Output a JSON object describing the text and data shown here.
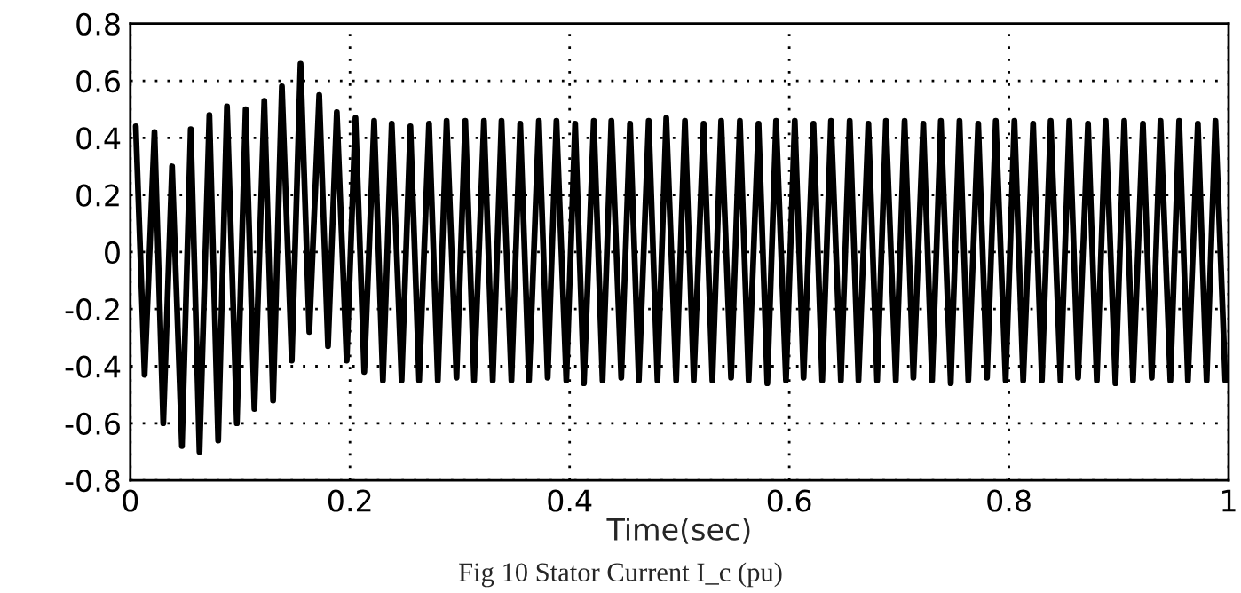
{
  "chart_data": {
    "type": "line",
    "xlabel": "Time(sec)",
    "annotations": [
      "Fig 10 Stator Current I_c (pu)"
    ],
    "x": [
      0.005,
      0.013,
      0.022,
      0.03,
      0.038,
      0.047,
      0.055,
      0.063,
      0.072,
      0.08,
      0.088,
      0.097,
      0.105,
      0.113,
      0.122,
      0.13,
      0.138,
      0.147,
      0.155,
      0.163,
      0.172,
      0.18,
      0.188,
      0.197,
      0.205,
      0.213,
      0.222,
      0.23,
      0.238,
      0.247,
      0.255,
      0.263,
      0.272,
      0.28,
      0.288,
      0.297,
      0.305,
      0.313,
      0.322,
      0.33,
      0.338,
      0.347,
      0.355,
      0.363,
      0.372,
      0.38,
      0.388,
      0.397,
      0.405,
      0.413,
      0.422,
      0.43,
      0.438,
      0.447,
      0.455,
      0.463,
      0.472,
      0.48,
      0.488,
      0.497,
      0.505,
      0.513,
      0.522,
      0.53,
      0.538,
      0.547,
      0.555,
      0.563,
      0.572,
      0.58,
      0.588,
      0.597,
      0.605,
      0.613,
      0.622,
      0.63,
      0.638,
      0.647,
      0.655,
      0.663,
      0.672,
      0.68,
      0.688,
      0.697,
      0.705,
      0.713,
      0.722,
      0.73,
      0.738,
      0.747,
      0.755,
      0.763,
      0.772,
      0.78,
      0.788,
      0.797,
      0.805,
      0.813,
      0.822,
      0.83,
      0.838,
      0.847,
      0.855,
      0.863,
      0.872,
      0.88,
      0.888,
      0.897,
      0.905,
      0.913,
      0.922,
      0.93,
      0.938,
      0.947,
      0.955,
      0.963,
      0.972,
      0.98,
      0.988,
      0.997
    ],
    "series": [
      {
        "color": "#000000",
        "values": [
          0.44,
          -0.43,
          0.42,
          -0.6,
          0.3,
          -0.68,
          0.43,
          -0.7,
          0.48,
          -0.66,
          0.51,
          -0.6,
          0.5,
          -0.55,
          0.53,
          -0.52,
          0.58,
          -0.38,
          0.66,
          -0.28,
          0.55,
          -0.33,
          0.49,
          -0.38,
          0.47,
          -0.42,
          0.46,
          -0.45,
          0.45,
          -0.45,
          0.44,
          -0.45,
          0.45,
          -0.45,
          0.46,
          -0.44,
          0.46,
          -0.45,
          0.46,
          -0.45,
          0.46,
          -0.45,
          0.45,
          -0.45,
          0.46,
          -0.44,
          0.46,
          -0.45,
          0.45,
          -0.46,
          0.46,
          -0.45,
          0.46,
          -0.44,
          0.45,
          -0.45,
          0.46,
          -0.45,
          0.47,
          -0.45,
          0.46,
          -0.45,
          0.45,
          -0.45,
          0.46,
          -0.44,
          0.46,
          -0.45,
          0.45,
          -0.46,
          0.46,
          -0.45,
          0.46,
          -0.44,
          0.45,
          -0.45,
          0.46,
          -0.45,
          0.46,
          -0.45,
          0.45,
          -0.45,
          0.46,
          -0.45,
          0.46,
          -0.44,
          0.45,
          -0.45,
          0.46,
          -0.46,
          0.46,
          -0.45,
          0.45,
          -0.44,
          0.46,
          -0.45,
          0.46,
          -0.45,
          0.45,
          -0.45,
          0.46,
          -0.45,
          0.46,
          -0.44,
          0.45,
          -0.45,
          0.46,
          -0.46,
          0.46,
          -0.45,
          0.45,
          -0.44,
          0.46,
          -0.45,
          0.46,
          -0.45,
          0.45,
          -0.45,
          0.46,
          -0.45
        ]
      }
    ],
    "xlim": [
      0,
      1
    ],
    "xticks": [
      0,
      0.2,
      0.4,
      0.6,
      0.8,
      1
    ],
    "ylim": [
      -0.8,
      0.8
    ],
    "yticks": [
      -0.8,
      -0.6,
      -0.4,
      -0.2,
      0,
      0.2,
      0.4,
      0.6,
      0.8
    ],
    "grid": true,
    "line_style": "solid"
  }
}
